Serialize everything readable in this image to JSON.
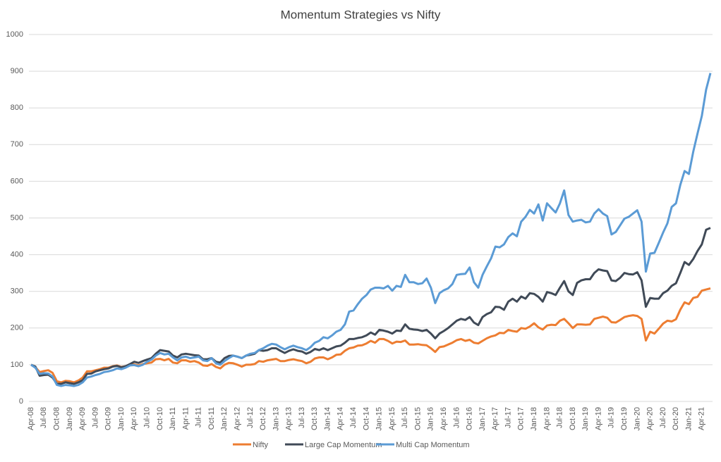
{
  "chart_data": {
    "type": "line",
    "title": "Momentum Strategies vs Nifty",
    "categories": [
      "Apr-08",
      null,
      null,
      "Jul-08",
      null,
      null,
      "Oct-08",
      null,
      null,
      "Jan-09",
      null,
      null,
      "Apr-09",
      null,
      null,
      "Jul-09",
      null,
      null,
      "Oct-09",
      null,
      null,
      "Jan-10",
      null,
      null,
      "Apr-10",
      null,
      null,
      "Jul-10",
      null,
      null,
      "Oct-10",
      null,
      null,
      "Jan-11",
      null,
      null,
      "Apr-11",
      null,
      null,
      "Jul-11",
      null,
      null,
      "Oct-11",
      null,
      null,
      "Jan-12",
      null,
      null,
      "Apr-12",
      null,
      null,
      "Jul-12",
      null,
      null,
      "Oct-12",
      null,
      null,
      "Jan-13",
      null,
      null,
      "Apr-13",
      null,
      null,
      "Jul-13",
      null,
      null,
      "Oct-13",
      null,
      null,
      "Jan-14",
      null,
      null,
      "Apr-14",
      null,
      null,
      "Jul-14",
      null,
      null,
      "Oct-14",
      null,
      null,
      "Jan-15",
      null,
      null,
      "Apr-15",
      null,
      null,
      "Jul-15",
      null,
      null,
      "Oct-15",
      null,
      null,
      "Jan-16",
      null,
      null,
      "Apr-16",
      null,
      null,
      "Jul-16",
      null,
      null,
      "Oct-16",
      null,
      null,
      "Jan-17",
      null,
      null,
      "Apr-17",
      null,
      null,
      "Jul-17",
      null,
      null,
      "Oct-17",
      null,
      null,
      "Jan-18",
      null,
      null,
      "Apr-18",
      null,
      null,
      "Jul-18",
      null,
      null,
      "Oct-18",
      null,
      null,
      "Jan-19",
      null,
      null,
      "Apr-19",
      null,
      null,
      "Jul-19",
      null,
      null,
      "Oct-19",
      null,
      null,
      "Jan-20",
      null,
      null,
      "Apr-20",
      null,
      null,
      "Jul-20",
      null,
      null,
      "Oct-20",
      null,
      null,
      "Jan-21",
      null,
      null,
      "Apr-21",
      null,
      null
    ],
    "series": [
      {
        "name": "Nifty",
        "color": "#ed7d31",
        "values": [
          100,
          93,
          80,
          83,
          85,
          78,
          55,
          52,
          56,
          55,
          52,
          57,
          65,
          82,
          82,
          85,
          88,
          92,
          92,
          96,
          98,
          94,
          96,
          100,
          101,
          98,
          102,
          104,
          106,
          115,
          116,
          112,
          116,
          106,
          104,
          112,
          112,
          108,
          110,
          106,
          98,
          97,
          102,
          94,
          90,
          100,
          105,
          104,
          100,
          95,
          100,
          100,
          102,
          110,
          108,
          112,
          114,
          116,
          110,
          110,
          113,
          115,
          112,
          110,
          104,
          108,
          117,
          120,
          120,
          115,
          120,
          127,
          128,
          138,
          145,
          147,
          152,
          153,
          158,
          165,
          160,
          170,
          170,
          165,
          158,
          163,
          162,
          166,
          155,
          155,
          156,
          154,
          153,
          145,
          135,
          148,
          150,
          155,
          160,
          167,
          170,
          165,
          168,
          160,
          158,
          165,
          172,
          177,
          180,
          187,
          186,
          195,
          192,
          190,
          200,
          198,
          204,
          213,
          202,
          196,
          207,
          209,
          208,
          220,
          225,
          213,
          200,
          210,
          210,
          209,
          210,
          225,
          228,
          231,
          228,
          216,
          215,
          222,
          230,
          233,
          235,
          233,
          225,
          166,
          190,
          185,
          198,
          212,
          220,
          218,
          224,
          250,
          270,
          265,
          282,
          285,
          302,
          305,
          308
        ]
      },
      {
        "name": "Large Cap Momentum",
        "color": "#404a57",
        "values": [
          100,
          95,
          70,
          72,
          73,
          65,
          48,
          48,
          52,
          50,
          48,
          52,
          58,
          75,
          76,
          82,
          85,
          88,
          90,
          95,
          97,
          93,
          96,
          102,
          108,
          105,
          110,
          114,
          118,
          130,
          140,
          138,
          136,
          125,
          120,
          128,
          130,
          128,
          126,
          125,
          115,
          115,
          118,
          108,
          106,
          118,
          124,
          125,
          122,
          118,
          125,
          127,
          130,
          140,
          138,
          140,
          145,
          145,
          138,
          132,
          138,
          142,
          138,
          136,
          130,
          135,
          143,
          140,
          145,
          140,
          145,
          150,
          152,
          160,
          170,
          170,
          173,
          175,
          180,
          188,
          182,
          195,
          193,
          190,
          185,
          193,
          192,
          210,
          198,
          196,
          195,
          192,
          195,
          185,
          172,
          185,
          192,
          200,
          210,
          220,
          225,
          222,
          230,
          215,
          208,
          230,
          238,
          243,
          258,
          257,
          250,
          272,
          280,
          272,
          286,
          280,
          295,
          293,
          285,
          272,
          298,
          295,
          290,
          310,
          328,
          300,
          290,
          323,
          330,
          333,
          333,
          350,
          360,
          357,
          355,
          330,
          328,
          337,
          350,
          347,
          346,
          352,
          330,
          258,
          282,
          280,
          280,
          295,
          302,
          315,
          322,
          350,
          380,
          372,
          388,
          410,
          428,
          468,
          473
        ]
      },
      {
        "name": "Multi Cap Momentum",
        "color": "#5b9bd5",
        "values": [
          100,
          92,
          75,
          77,
          76,
          68,
          45,
          42,
          45,
          44,
          42,
          45,
          52,
          65,
          68,
          72,
          75,
          80,
          82,
          85,
          90,
          88,
          92,
          98,
          99,
          96,
          100,
          108,
          114,
          125,
          132,
          128,
          130,
          120,
          112,
          120,
          122,
          118,
          120,
          122,
          112,
          110,
          118,
          104,
          100,
          110,
          118,
          125,
          122,
          118,
          125,
          130,
          132,
          140,
          145,
          152,
          157,
          155,
          148,
          142,
          148,
          152,
          148,
          145,
          140,
          148,
          160,
          165,
          175,
          172,
          180,
          190,
          195,
          210,
          245,
          248,
          265,
          280,
          290,
          305,
          310,
          310,
          308,
          315,
          302,
          315,
          312,
          345,
          325,
          325,
          320,
          322,
          335,
          310,
          268,
          295,
          303,
          308,
          320,
          345,
          347,
          348,
          365,
          325,
          310,
          345,
          368,
          390,
          422,
          420,
          428,
          448,
          458,
          450,
          490,
          503,
          522,
          512,
          537,
          493,
          540,
          527,
          515,
          540,
          575,
          508,
          490,
          493,
          495,
          488,
          490,
          512,
          524,
          512,
          505,
          455,
          462,
          480,
          498,
          503,
          512,
          521,
          490,
          354,
          403,
          405,
          432,
          460,
          485,
          530,
          540,
          590,
          628,
          620,
          680,
          730,
          778,
          850,
          895
        ]
      }
    ],
    "ylim": [
      0,
      1000
    ],
    "yticks": [
      0,
      100,
      200,
      300,
      400,
      500,
      600,
      700,
      800,
      900,
      1000
    ],
    "grid": true,
    "legend": "bottom"
  }
}
